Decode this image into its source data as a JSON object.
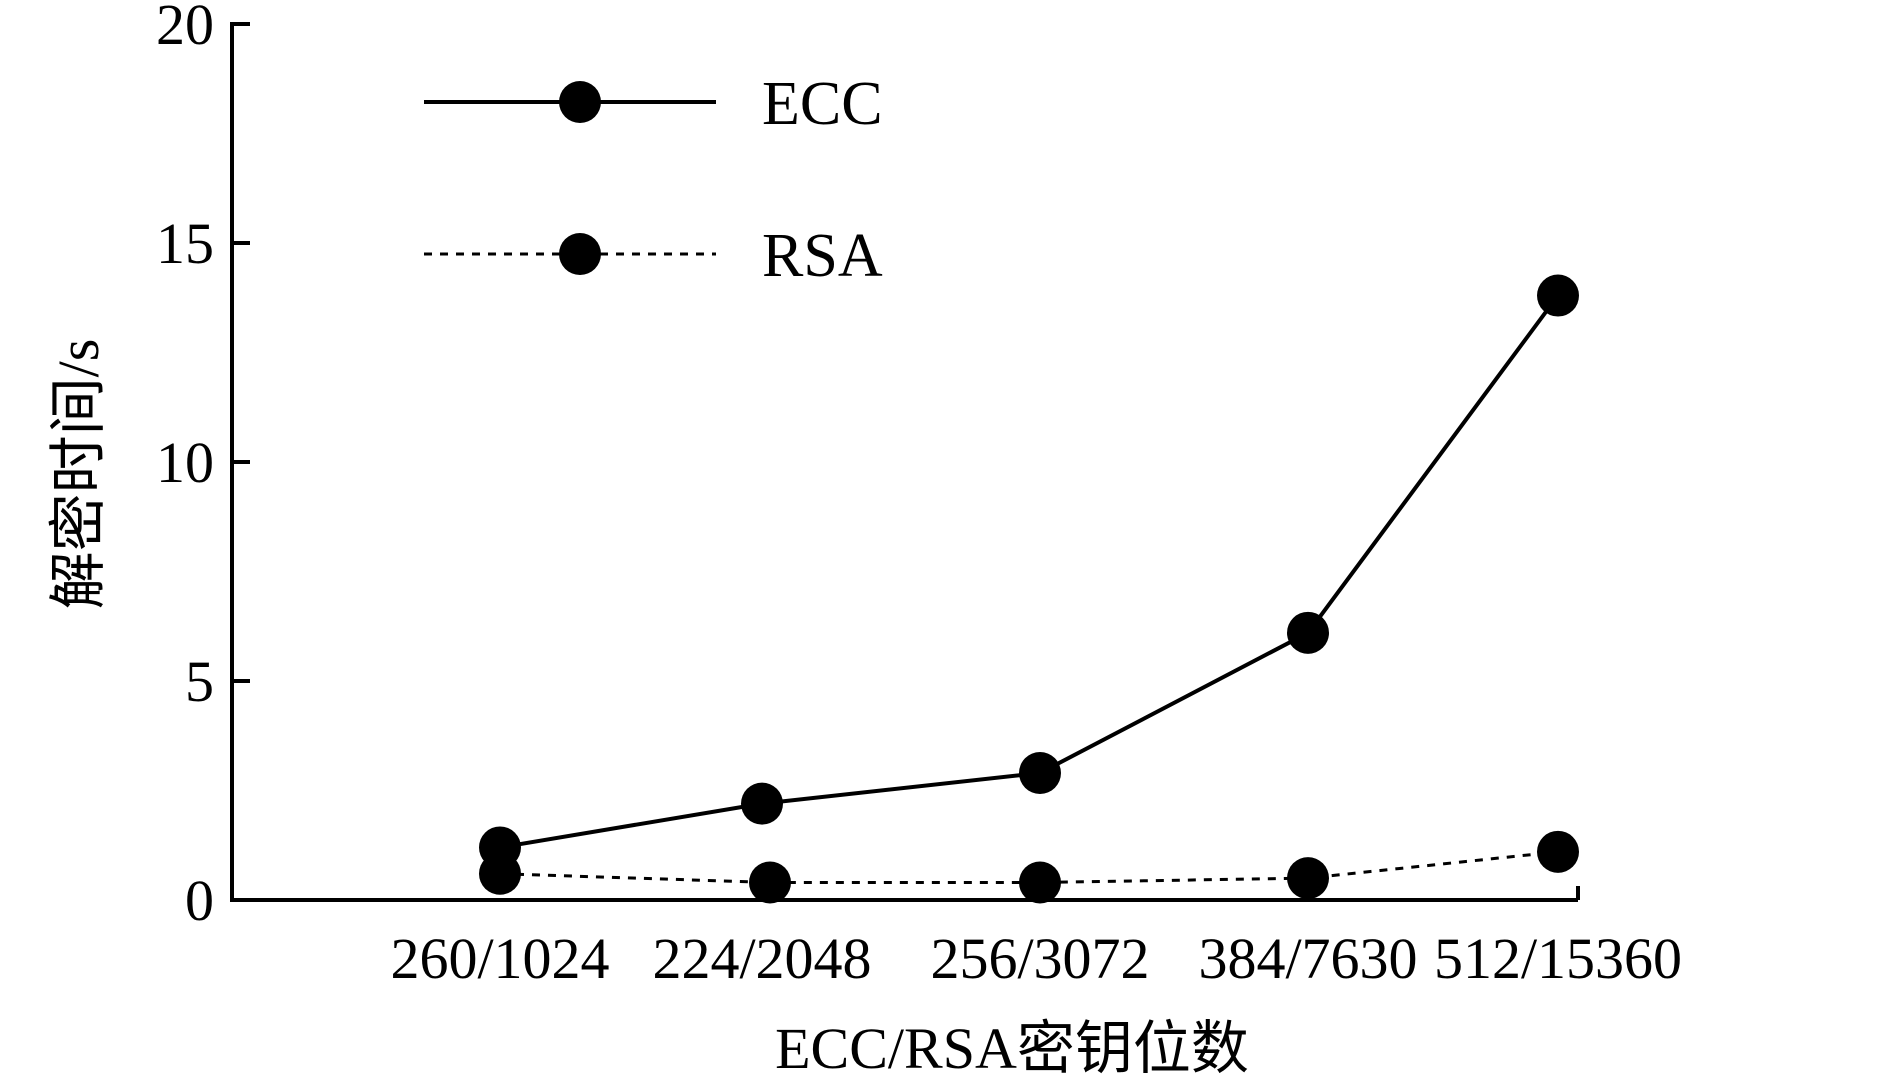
{
  "chart_data": {
    "type": "line",
    "title": "",
    "xlabel": "ECC/RSA密钥位数",
    "ylabel": "解密时间/s",
    "categories": [
      "260/1024",
      "224/2048",
      "256/3072",
      "384/7630",
      "512/15360"
    ],
    "y_ticks": [
      "0",
      "5",
      "10",
      "15",
      "20"
    ],
    "ylim": [
      0,
      20
    ],
    "grid": false,
    "legend_position": "top-left",
    "series": [
      {
        "name": "ECC",
        "values": [
          1.2,
          2.2,
          2.9,
          6.1,
          13.8
        ],
        "line_style": "solid",
        "marker": "filled-circle",
        "color": "#000000"
      },
      {
        "name": "RSA",
        "values": [
          0.6,
          0.4,
          0.4,
          0.5,
          1.1
        ],
        "line_style": "dotted",
        "marker": "filled-circle",
        "color": "#000000"
      }
    ]
  }
}
